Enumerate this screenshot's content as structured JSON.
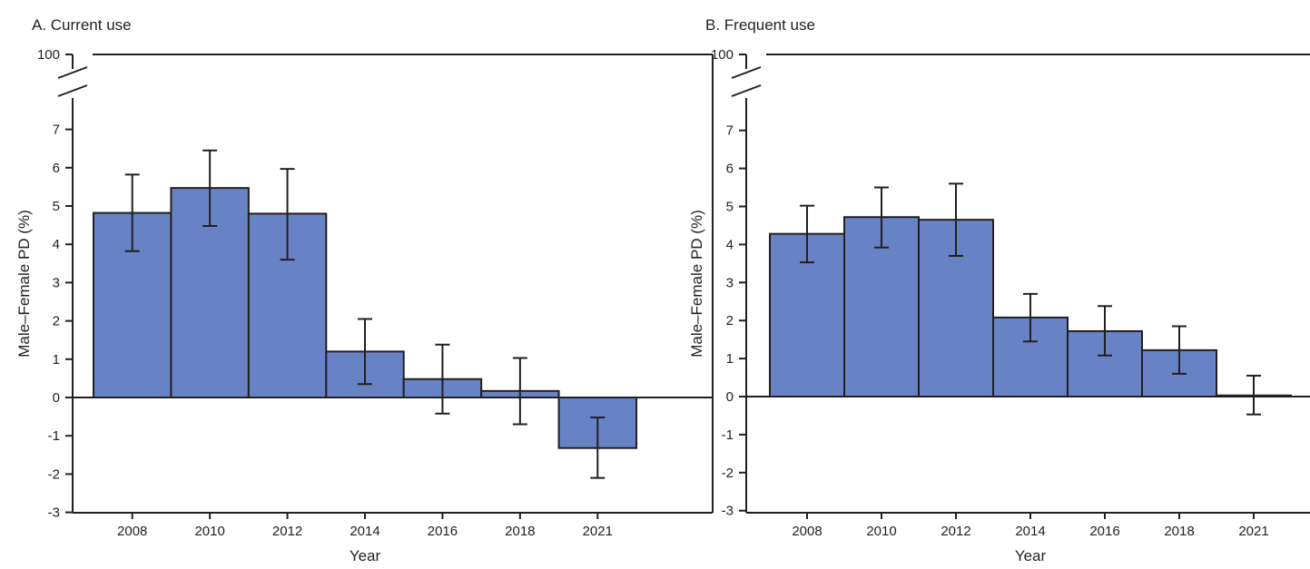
{
  "colors": {
    "bar_fill": "#6883c5",
    "bar_stroke": "#231f20",
    "axis": "#231f20"
  },
  "chart_data": [
    {
      "type": "bar",
      "title": "A. Current use",
      "xlabel": "Year",
      "ylabel": "Male–Female PD (%)",
      "categories": [
        "2008",
        "2010",
        "2012",
        "2014",
        "2016",
        "2018",
        "2021"
      ],
      "values": [
        4.82,
        5.47,
        4.8,
        1.2,
        0.48,
        0.17,
        -1.32
      ],
      "error_low": [
        3.82,
        4.48,
        3.6,
        0.35,
        -0.42,
        -0.7,
        -2.1
      ],
      "error_high": [
        5.82,
        6.45,
        5.97,
        2.05,
        1.38,
        1.03,
        -0.52
      ],
      "y_ticks": [
        "-3",
        "-2",
        "-1",
        "0",
        "1",
        "2",
        "3",
        "4",
        "5",
        "6",
        "7",
        "100"
      ],
      "ylim": [
        -3,
        100
      ],
      "axis_break": [
        7.5,
        100
      ],
      "grid": false,
      "legend": "none"
    },
    {
      "type": "bar",
      "title": "B. Frequent  use",
      "xlabel": "Year",
      "ylabel": "Male–Female PD (%)",
      "categories": [
        "2008",
        "2010",
        "2012",
        "2014",
        "2016",
        "2018",
        "2021"
      ],
      "values": [
        4.28,
        4.72,
        4.65,
        2.08,
        1.72,
        1.22,
        0.03
      ],
      "error_low": [
        3.53,
        3.92,
        3.7,
        1.45,
        1.08,
        0.6,
        -0.47
      ],
      "error_high": [
        5.02,
        5.5,
        5.6,
        2.7,
        2.38,
        1.85,
        0.55
      ],
      "y_ticks": [
        "-3",
        "-2",
        "-1",
        "0",
        "1",
        "2",
        "3",
        "4",
        "5",
        "6",
        "7",
        "100"
      ],
      "ylim": [
        -3,
        100
      ],
      "axis_break": [
        7.5,
        100
      ],
      "grid": false,
      "legend": "none"
    }
  ]
}
